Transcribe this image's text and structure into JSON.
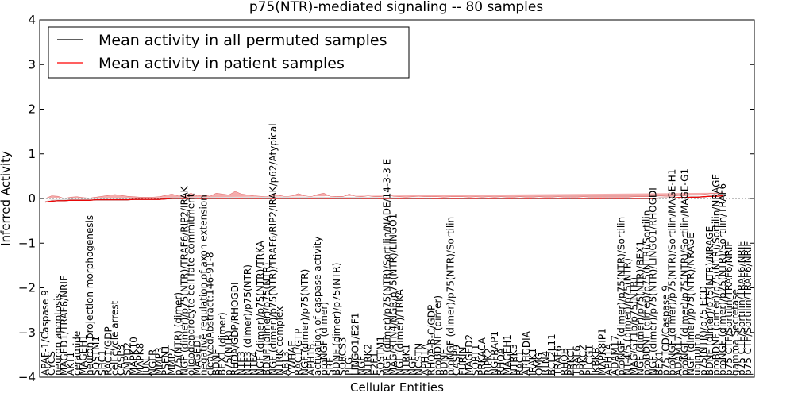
{
  "chart_data": {
    "type": "line",
    "title": "p75(NTR)-mediated signaling -- 80 samples",
    "xlabel": "Cellular Entities",
    "ylabel": "Inferred Activity",
    "ylim": [
      -4,
      4
    ],
    "yticks": [
      -4,
      -3,
      -2,
      -1,
      0,
      1,
      2,
      3,
      4
    ],
    "legend_position": "upper-left",
    "colors": {
      "permuted": "#000000",
      "patient": "#ff0000",
      "patient_band": "#f08080",
      "permuted_band": "#c8c8c8"
    },
    "series": [
      {
        "name": "Mean activity in all permuted samples",
        "color": "#000000"
      },
      {
        "name": "Mean activity in patient samples",
        "color": "#ff0000"
      }
    ],
    "categories": [
      "APAF-1/Caspase 9",
      "CYCS",
      "neuron apoptosis",
      "MAGED1/TRAF6/NRIF",
      "AKT1",
      "ceramide",
      "MAGEH1",
      "neuron projection morphogenesis",
      "SQSTM1",
      "SHC1",
      "RAC1/GDP",
      "cell cycle arrest",
      "CASP3",
      "SMPD2",
      "MAPK10",
      "MAPK8",
      "JUN",
      "NGFR",
      "MMP3",
      "PSEN1",
      "MMP7",
      "p75(NTR) (dimer)",
      "NGF (dimer)/p75(NTR)/TRAF6/RIP2/IRAK",
      "oligodendrocyte cell fate commitment",
      "MAGED1",
      "negative regulation of axon extension",
      "cleavedAbstract:146-91-8",
      "BDNF",
      "BEX1 (dimer)",
      "p75(NTR)",
      "RHOA/GDP/RHOGDI",
      "NTF3",
      "NTF3 (dimer)/p75(NTR)",
      "NTF4",
      "NGF (dimer)/p75(NTR)/TRKA",
      "BDNF (dimer)/p75(NTR)",
      "NGF (dimer)/p75(NTR)/TRAF6/RIP2/IRAK/p62/Atypical",
      "NTRK complex",
      "ABL3",
      "YWHAE",
      "RAC1/GTP",
      "NGF (dimer)/p75(NTR)",
      "APH1B",
      "activation of caspase activity",
      "proNGF (dimer)",
      "SRF",
      "BDNF (dimer)/p75(NTR)",
      "SORCS3",
      "PLG",
      "LINGO1/E2F1",
      "NGF",
      "NTRK2",
      "E2F1",
      "SQSTM1",
      "NGF (dimer)/p75(NTR)/Sortilin/NADE/14-3-3 E",
      "MAG/RTN4/NGR/p75(NTR)/LINGO1",
      "NGF (dimer)/TRKA",
      "NTRK1",
      "NGF",
      "NCSTN",
      "APH1A",
      "RHOA-B-C/GDP",
      "proBDNF (dimer)",
      "BDNF",
      "proNGF (dimer)/p75(NTR)/Sortilin",
      "CASP9",
      "FURIN",
      "MAGED2",
      "SORT1",
      "PRKACA",
      "RIPK2",
      "NGFRAP1",
      "RHOA",
      "MAGEH1",
      "NTRK3",
      "RAC1",
      "ARHGDIA",
      "IRAK1",
      "OMG",
      "RTN4",
      "BCL2L11",
      "TRAF6",
      "RHOB",
      "PRKCI",
      "TRAF6",
      "PRKCZ",
      "PLCG1",
      "IKBKB",
      "MAPK8IP1",
      "APH1A",
      "ADAM17",
      "proNGF (dimer)/p75(NTR)/Sortilin",
      "NT-4/5 (dimer)/p75(NTR)",
      "MAG/GT1b/p75(NTR)",
      "NGF (dimer)/p75(NTR)/BEX1",
      "proBDNF (dimer)/p75(NTR)/Sortilin",
      "NGF (dimer)/p75(NTR)/LINGO1/RHOGDI",
      "BEX1",
      "p75 ICD/Caspase 9",
      "proNGF (dimer)/p75(NTR)/Sortilin/MAGE-H1",
      "ADAM17",
      "proNGF (dimer)/p75(NTR)/Sortilin/MAGE-G1",
      "NGF (dimer)/p75(NTR)/NRAGE",
      "ubiquitin",
      "p75(NTR)/p75 ECD",
      "BDNF (dimer)/p75(NTR)/NRAGE",
      "proBDNF (dimer)/p75(NTR)/Sortilin/NRAGE",
      "proNGF (dimer)/p75(NTR)/Sortilin/TRAF6",
      "p75 CTF/Sortilin/TRAF6/NRIF",
      "gamma Secretase",
      "p75 CTF/Sortilin/TRAF6/NRIF",
      "p75 CTF/Sortilin/TRAF6/NRIF"
    ],
    "permuted_mean": [
      -0.08,
      -0.06,
      -0.05,
      -0.05,
      -0.04,
      -0.04,
      -0.04,
      -0.04,
      -0.03,
      -0.03,
      -0.03,
      -0.03,
      -0.03,
      -0.03,
      -0.02,
      -0.02,
      -0.02,
      -0.02,
      -0.02,
      -0.01,
      0.0,
      0.0,
      0.0,
      0.0,
      0.0,
      0.0,
      0.0,
      0.0,
      0.0,
      0.0,
      0.0,
      0.0,
      0.0,
      0.0,
      0.0,
      0.0,
      0.0,
      0.0,
      0.0,
      0.0,
      0.0,
      0.0,
      0.0,
      0.0,
      0.0,
      0.0,
      0.0,
      0.0,
      0.0,
      0.0,
      0.0,
      0.0,
      0.0,
      0.0,
      0.0,
      0.0,
      0.0,
      0.0,
      0.0,
      0.0,
      0.0,
      0.0,
      0.0,
      0.0,
      0.0,
      0.0,
      0.0,
      0.0,
      0.0,
      0.0,
      0.0,
      0.0,
      0.0,
      0.0,
      0.0,
      0.0,
      0.0,
      0.0,
      0.0,
      0.0,
      0.0,
      0.0,
      0.0,
      0.0,
      0.0,
      0.0,
      0.0,
      0.0,
      0.0,
      0.0,
      0.0,
      0.0,
      0.0,
      0.0,
      0.0,
      0.0,
      0.0,
      0.01,
      0.01,
      0.01,
      0.02,
      0.02,
      0.03,
      0.03,
      0.04,
      0.05,
      0.05,
      0.06
    ],
    "patient_mean": [
      -0.08,
      -0.06,
      -0.05,
      -0.05,
      -0.04,
      -0.04,
      -0.04,
      -0.04,
      -0.03,
      -0.03,
      -0.03,
      -0.03,
      -0.03,
      -0.03,
      -0.02,
      -0.02,
      -0.02,
      -0.02,
      -0.02,
      -0.01,
      0.0,
      0.0,
      0.0,
      0.0,
      0.0,
      0.0,
      0.0,
      0.0,
      0.0,
      0.0,
      0.0,
      0.0,
      0.0,
      0.0,
      0.0,
      0.0,
      0.0,
      0.0,
      0.0,
      0.0,
      0.0,
      0.0,
      0.0,
      0.0,
      0.0,
      0.0,
      0.0,
      0.0,
      0.0,
      0.0,
      0.0,
      0.0,
      0.0,
      0.0,
      0.0,
      0.0,
      0.0,
      0.0,
      0.0,
      0.0,
      0.0,
      0.0,
      0.0,
      0.0,
      0.0,
      0.0,
      0.0,
      0.0,
      0.0,
      0.0,
      0.0,
      0.0,
      0.0,
      0.0,
      0.0,
      0.0,
      0.0,
      0.0,
      0.0,
      0.0,
      0.0,
      0.0,
      0.0,
      0.0,
      0.0,
      0.0,
      0.0,
      0.0,
      0.0,
      0.0,
      0.0,
      0.0,
      0.0,
      0.0,
      0.0,
      0.0,
      0.0,
      0.01,
      0.01,
      0.01,
      0.02,
      0.02,
      0.03,
      0.03,
      0.04,
      0.05,
      0.05,
      0.06
    ],
    "patient_spread": [
      0.08,
      0.12,
      0.1,
      0.05,
      0.07,
      0.08,
      0.06,
      0.05,
      0.06,
      0.08,
      0.1,
      0.12,
      0.1,
      0.08,
      0.06,
      0.05,
      0.05,
      0.05,
      0.06,
      0.08,
      0.1,
      0.06,
      0.05,
      0.12,
      0.06,
      0.08,
      0.05,
      0.12,
      0.1,
      0.08,
      0.16,
      0.1,
      0.08,
      0.06,
      0.05,
      0.04,
      0.1,
      0.07,
      0.04,
      0.06,
      0.11,
      0.06,
      0.04,
      0.09,
      0.12,
      0.05,
      0.04,
      0.04,
      0.1,
      0.05,
      0.04,
      0.06,
      0.04,
      0.04,
      0.08,
      0.05,
      0.04,
      0.03,
      0.04,
      0.05,
      0.04,
      0.04,
      0.04,
      0.03,
      0.04,
      0.04,
      0.04,
      0.03,
      0.04,
      0.03,
      0.04,
      0.03,
      0.04,
      0.03,
      0.03,
      0.04,
      0.03,
      0.03,
      0.04,
      0.03,
      0.03,
      0.04,
      0.03,
      0.03,
      0.03,
      0.04,
      0.03,
      0.03,
      0.03,
      0.03,
      0.03,
      0.03,
      0.03,
      0.04,
      0.04,
      0.04,
      0.04,
      0.05,
      0.04,
      0.04,
      0.05,
      0.04,
      0.05,
      0.05,
      0.05,
      0.06,
      0.06,
      0.07
    ]
  }
}
